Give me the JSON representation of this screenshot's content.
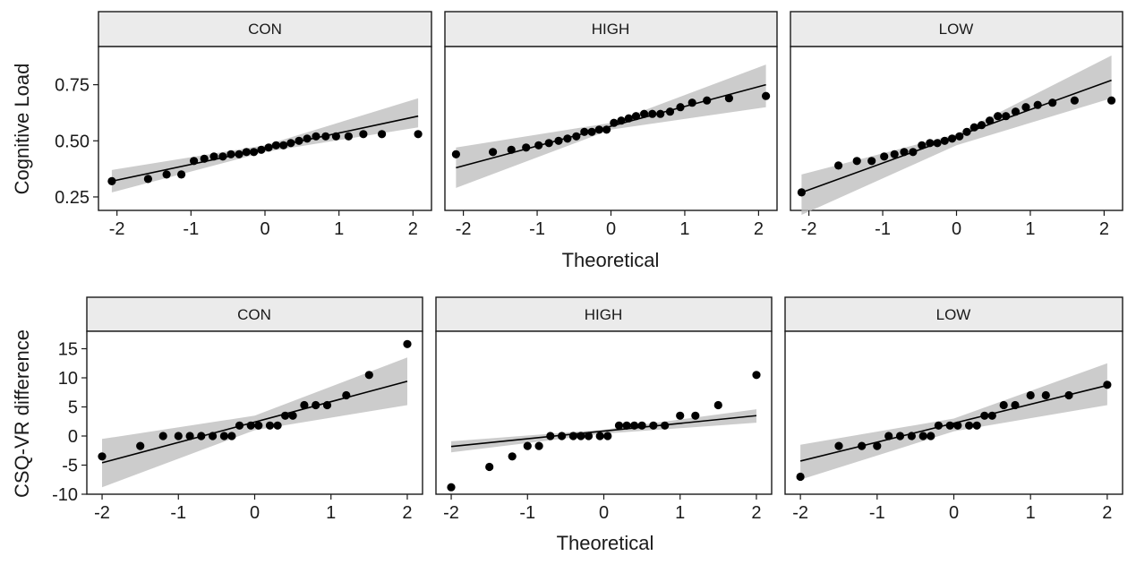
{
  "chart_data": [
    {
      "type": "scatter",
      "panel": "CON",
      "row": "Cognitive Load",
      "title": "CON",
      "xlabel": "Theoretical",
      "ylabel": "Cognitive Load",
      "xlim": [
        -2.25,
        2.25
      ],
      "ylim": [
        0.19,
        0.92
      ],
      "xticks": [
        "-2",
        "-1",
        "0",
        "1",
        "2"
      ],
      "yticks": [
        "0.25",
        "0.50",
        "0.75"
      ],
      "points": {
        "x": [
          -2.07,
          -1.58,
          -1.33,
          -1.13,
          -0.96,
          -0.82,
          -0.69,
          -0.57,
          -0.46,
          -0.35,
          -0.25,
          -0.15,
          -0.05,
          0.05,
          0.15,
          0.25,
          0.35,
          0.46,
          0.57,
          0.69,
          0.82,
          0.96,
          1.13,
          1.33,
          1.58,
          2.07
        ],
        "y": [
          0.32,
          0.33,
          0.35,
          0.35,
          0.41,
          0.42,
          0.43,
          0.43,
          0.44,
          0.44,
          0.45,
          0.45,
          0.46,
          0.47,
          0.48,
          0.48,
          0.49,
          0.5,
          0.51,
          0.52,
          0.52,
          0.52,
          0.52,
          0.53,
          0.53,
          0.53
        ]
      },
      "line": {
        "x": [
          -2.07,
          2.07
        ],
        "y": [
          0.32,
          0.61
        ]
      },
      "band": {
        "x": [
          -2.07,
          0,
          2.07
        ],
        "lower": [
          0.27,
          0.45,
          0.56
        ],
        "upper": [
          0.37,
          0.48,
          0.69
        ]
      }
    },
    {
      "type": "scatter",
      "panel": "HIGH",
      "row": "Cognitive Load",
      "title": "HIGH",
      "xlabel": "Theoretical",
      "ylabel": "",
      "xlim": [
        -2.25,
        2.25
      ],
      "ylim": [
        0.19,
        0.92
      ],
      "xticks": [
        "-2",
        "-1",
        "0",
        "1",
        "2"
      ],
      "yticks": [],
      "points": {
        "x": [
          -2.1,
          -1.6,
          -1.35,
          -1.15,
          -0.98,
          -0.84,
          -0.71,
          -0.59,
          -0.47,
          -0.36,
          -0.26,
          -0.16,
          -0.06,
          0.04,
          0.14,
          0.24,
          0.34,
          0.45,
          0.56,
          0.67,
          0.8,
          0.94,
          1.1,
          1.3,
          1.6,
          2.1
        ],
        "y": [
          0.44,
          0.45,
          0.46,
          0.47,
          0.48,
          0.49,
          0.5,
          0.51,
          0.52,
          0.54,
          0.54,
          0.55,
          0.55,
          0.58,
          0.59,
          0.6,
          0.61,
          0.62,
          0.62,
          0.62,
          0.63,
          0.65,
          0.67,
          0.68,
          0.69,
          0.7
        ]
      },
      "line": {
        "x": [
          -2.1,
          2.1
        ],
        "y": [
          0.38,
          0.75
        ]
      },
      "band": {
        "x": [
          -2.1,
          0,
          2.1
        ],
        "lower": [
          0.29,
          0.55,
          0.65
        ],
        "upper": [
          0.47,
          0.58,
          0.84
        ]
      }
    },
    {
      "type": "scatter",
      "panel": "LOW",
      "row": "Cognitive Load",
      "title": "LOW",
      "xlabel": "Theoretical",
      "ylabel": "",
      "xlim": [
        -2.25,
        2.25
      ],
      "ylim": [
        0.19,
        0.92
      ],
      "xticks": [
        "-2",
        "-1",
        "0",
        "1",
        "2"
      ],
      "yticks": [],
      "points": {
        "x": [
          -2.1,
          -1.6,
          -1.35,
          -1.15,
          -0.98,
          -0.84,
          -0.71,
          -0.59,
          -0.47,
          -0.36,
          -0.26,
          -0.16,
          -0.06,
          0.04,
          0.14,
          0.24,
          0.34,
          0.45,
          0.56,
          0.67,
          0.8,
          0.94,
          1.1,
          1.3,
          1.6,
          2.1
        ],
        "y": [
          0.27,
          0.39,
          0.41,
          0.41,
          0.43,
          0.44,
          0.45,
          0.45,
          0.48,
          0.49,
          0.49,
          0.5,
          0.51,
          0.52,
          0.54,
          0.56,
          0.57,
          0.59,
          0.61,
          0.61,
          0.63,
          0.65,
          0.66,
          0.67,
          0.68,
          0.68
        ]
      },
      "line": {
        "x": [
          -2.1,
          2.1
        ],
        "y": [
          0.27,
          0.77
        ]
      },
      "band": {
        "x": [
          -2.1,
          0,
          2.1
        ],
        "lower": [
          0.17,
          0.48,
          0.69
        ],
        "upper": [
          0.35,
          0.53,
          0.88
        ]
      }
    },
    {
      "type": "scatter",
      "panel": "CON",
      "row": "CSQ-VR difference",
      "title": "CON",
      "xlabel": "Theoretical",
      "ylabel": "CSQ-VR difference",
      "xlim": [
        -2.2,
        2.2
      ],
      "ylim": [
        -10,
        18
      ],
      "xticks": [
        "-2",
        "-1",
        "0",
        "1",
        "2"
      ],
      "yticks": [
        "-10",
        "-5",
        "0",
        "5",
        "10",
        "15"
      ],
      "points": {
        "x": [
          -2.0,
          -1.5,
          -1.2,
          -1.0,
          -0.85,
          -0.7,
          -0.55,
          -0.4,
          -0.3,
          -0.2,
          -0.05,
          0.05,
          0.2,
          0.3,
          0.4,
          0.5,
          0.65,
          0.8,
          0.95,
          1.2,
          1.5,
          2.0
        ],
        "y": [
          -3.5,
          -1.7,
          0.0,
          0.0,
          0.0,
          0.0,
          0.0,
          0.0,
          0.0,
          1.8,
          1.8,
          1.8,
          1.8,
          1.8,
          3.5,
          3.5,
          5.3,
          5.3,
          5.3,
          7.0,
          10.5,
          15.8
        ]
      },
      "line": {
        "x": [
          -2.0,
          2.0
        ],
        "y": [
          -4.6,
          9.4
        ]
      },
      "band": {
        "x": [
          -2.0,
          0,
          2.0
        ],
        "lower": [
          -8.8,
          1.0,
          5.3
        ],
        "upper": [
          -0.5,
          3.5,
          13.5
        ]
      }
    },
    {
      "type": "scatter",
      "panel": "HIGH",
      "row": "CSQ-VR difference",
      "title": "HIGH",
      "xlabel": "Theoretical",
      "ylabel": "",
      "xlim": [
        -2.2,
        2.2
      ],
      "ylim": [
        -10,
        18
      ],
      "xticks": [
        "-2",
        "-1",
        "0",
        "1",
        "2"
      ],
      "yticks": [],
      "points": {
        "x": [
          -2.0,
          -1.5,
          -1.2,
          -1.0,
          -0.85,
          -0.7,
          -0.55,
          -0.4,
          -0.3,
          -0.2,
          -0.05,
          0.05,
          0.2,
          0.3,
          0.4,
          0.5,
          0.65,
          0.8,
          1.0,
          1.2,
          1.5,
          2.0
        ],
        "y": [
          -8.8,
          -5.3,
          -3.5,
          -1.7,
          -1.7,
          0.0,
          0.0,
          0.0,
          0.0,
          0.0,
          0.0,
          0.0,
          1.8,
          1.8,
          1.8,
          1.8,
          1.8,
          1.8,
          3.5,
          3.5,
          5.3,
          10.5
        ]
      },
      "line": {
        "x": [
          -2.0,
          2.0
        ],
        "y": [
          -1.8,
          3.5
        ]
      },
      "band": {
        "x": [
          -2.0,
          0,
          2.0
        ],
        "lower": [
          -2.8,
          0.4,
          2.3
        ],
        "upper": [
          -0.9,
          1.1,
          4.6
        ]
      }
    },
    {
      "type": "scatter",
      "panel": "LOW",
      "row": "CSQ-VR difference",
      "title": "LOW",
      "xlabel": "Theoretical",
      "ylabel": "",
      "xlim": [
        -2.2,
        2.2
      ],
      "ylim": [
        -10,
        18
      ],
      "xticks": [
        "-2",
        "-1",
        "0",
        "1",
        "2"
      ],
      "yticks": [],
      "points": {
        "x": [
          -2.0,
          -1.5,
          -1.2,
          -1.0,
          -0.85,
          -0.7,
          -0.55,
          -0.4,
          -0.3,
          -0.2,
          -0.05,
          0.05,
          0.2,
          0.3,
          0.4,
          0.5,
          0.65,
          0.8,
          1.0,
          1.2,
          1.5,
          2.0
        ],
        "y": [
          -7.0,
          -1.7,
          -1.7,
          -1.7,
          0.0,
          0.0,
          0.0,
          0.0,
          0.0,
          1.8,
          1.8,
          1.8,
          1.8,
          1.8,
          3.5,
          3.5,
          5.3,
          5.3,
          7.0,
          7.0,
          7.0,
          8.8
        ]
      },
      "line": {
        "x": [
          -2.0,
          2.0
        ],
        "y": [
          -4.3,
          8.7
        ]
      },
      "band": {
        "x": [
          -2.0,
          0,
          2.0
        ],
        "lower": [
          -7.5,
          0.8,
          5.3
        ],
        "upper": [
          -1.5,
          3.0,
          12.5
        ]
      }
    }
  ]
}
